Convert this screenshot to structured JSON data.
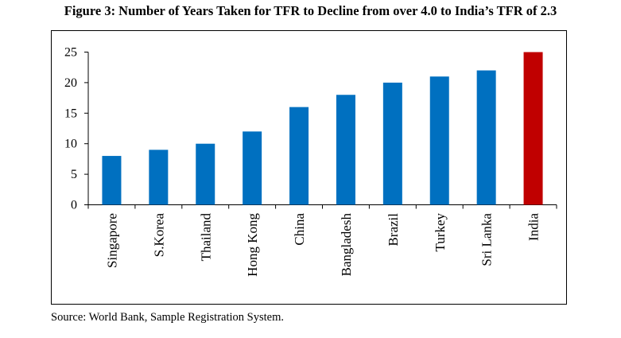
{
  "figure": {
    "title": "Figure 3: Number of Years Taken for TFR to Decline from over 4.0 to India’s TFR of 2.3",
    "source": "Source: World Bank, Sample Registration System."
  },
  "chart_data": {
    "type": "bar",
    "title": "Figure 3: Number of Years Taken for TFR to Decline from over 4.0 to India’s TFR of 2.3",
    "xlabel": "",
    "ylabel": "",
    "categories": [
      "Singapore",
      "S.Korea",
      "Thailand",
      "Hong Kong",
      "China",
      "Bangladesh",
      "Brazil",
      "Turkey",
      "Sri Lanka",
      "India"
    ],
    "values": [
      8,
      9,
      10,
      12,
      16,
      18,
      20,
      21,
      22,
      25
    ],
    "colors": [
      "#0070C0",
      "#0070C0",
      "#0070C0",
      "#0070C0",
      "#0070C0",
      "#0070C0",
      "#0070C0",
      "#0070C0",
      "#0070C0",
      "#C00000"
    ],
    "ylim": [
      0,
      25
    ],
    "yticks": [
      0,
      5,
      10,
      15,
      20,
      25
    ],
    "grid": false,
    "legend": "none"
  }
}
